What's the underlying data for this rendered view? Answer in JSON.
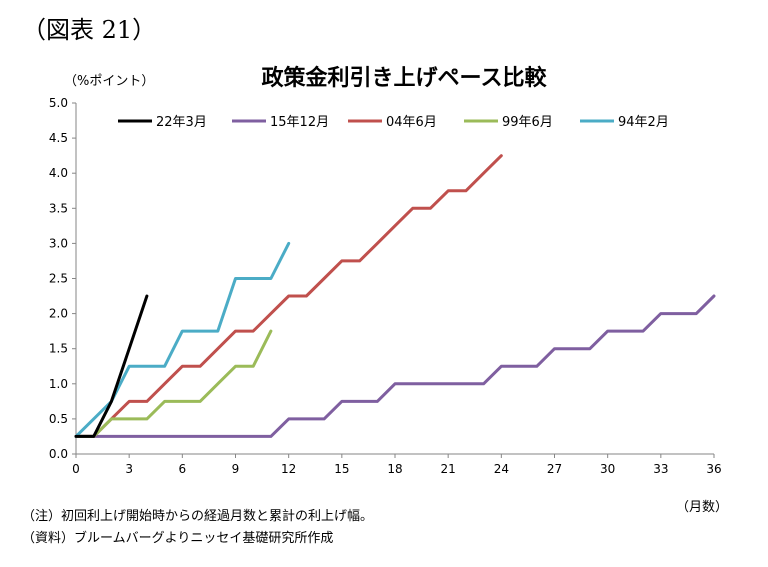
{
  "figure_label": "（図表 21）",
  "chart_data": {
    "type": "line",
    "title": "政策金利引き上げペース比較",
    "ylabel": "（%ポイント）",
    "xlabel": "（月数）",
    "ylim": [
      0,
      5.0
    ],
    "xlim": [
      0,
      36
    ],
    "y_ticks": [
      "0.0",
      "0.5",
      "1.0",
      "1.5",
      "2.0",
      "2.5",
      "3.0",
      "3.5",
      "4.0",
      "4.5",
      "5.0"
    ],
    "x_ticks": [
      "0",
      "3",
      "6",
      "9",
      "12",
      "15",
      "18",
      "21",
      "24",
      "27",
      "30",
      "33",
      "36"
    ],
    "grid": false,
    "legend_position": "top",
    "series": [
      {
        "name": "22年3月",
        "color": "#000000",
        "x": [
          0,
          1,
          2,
          3,
          4
        ],
        "y": [
          0.25,
          0.25,
          0.75,
          1.5,
          2.25
        ]
      },
      {
        "name": "15年12月",
        "color": "#7f5fa0",
        "x": [
          0,
          1,
          2,
          3,
          4,
          5,
          6,
          7,
          8,
          9,
          10,
          11,
          12,
          13,
          14,
          15,
          16,
          17,
          18,
          19,
          20,
          21,
          22,
          23,
          24,
          25,
          26,
          27,
          28,
          29,
          30,
          31,
          32,
          33,
          34,
          35,
          36
        ],
        "y": [
          0.25,
          0.25,
          0.25,
          0.25,
          0.25,
          0.25,
          0.25,
          0.25,
          0.25,
          0.25,
          0.25,
          0.25,
          0.5,
          0.5,
          0.5,
          0.75,
          0.75,
          0.75,
          1.0,
          1.0,
          1.0,
          1.0,
          1.0,
          1.0,
          1.25,
          1.25,
          1.25,
          1.5,
          1.5,
          1.5,
          1.75,
          1.75,
          1.75,
          2.0,
          2.0,
          2.0,
          2.25
        ]
      },
      {
        "name": "04年6月",
        "color": "#c0504d",
        "x": [
          0,
          1,
          2,
          3,
          4,
          5,
          6,
          7,
          8,
          9,
          10,
          11,
          12,
          13,
          14,
          15,
          16,
          17,
          18,
          19,
          20,
          21,
          22,
          23,
          24
        ],
        "y": [
          0.25,
          0.25,
          0.5,
          0.75,
          0.75,
          1.0,
          1.25,
          1.25,
          1.5,
          1.75,
          1.75,
          2.0,
          2.25,
          2.25,
          2.5,
          2.75,
          2.75,
          3.0,
          3.25,
          3.5,
          3.5,
          3.75,
          3.75,
          4.0,
          4.25
        ]
      },
      {
        "name": "99年6月",
        "color": "#9bbb59",
        "x": [
          0,
          1,
          2,
          3,
          4,
          5,
          6,
          7,
          8,
          9,
          10,
          11
        ],
        "y": [
          0.25,
          0.25,
          0.5,
          0.5,
          0.5,
          0.75,
          0.75,
          0.75,
          1.0,
          1.25,
          1.25,
          1.75
        ]
      },
      {
        "name": "94年2月",
        "color": "#4bacc6",
        "x": [
          0,
          1,
          2,
          3,
          4,
          5,
          6,
          7,
          8,
          9,
          10,
          11,
          12
        ],
        "y": [
          0.25,
          0.5,
          0.75,
          1.25,
          1.25,
          1.25,
          1.75,
          1.75,
          1.75,
          2.5,
          2.5,
          2.5,
          3.0
        ]
      }
    ]
  },
  "notes": {
    "note1": "（注）初回利上げ開始時からの経過月数と累計の利上げ幅。",
    "note2": "（資料）ブルームバーグよりニッセイ基礎研究所作成"
  }
}
